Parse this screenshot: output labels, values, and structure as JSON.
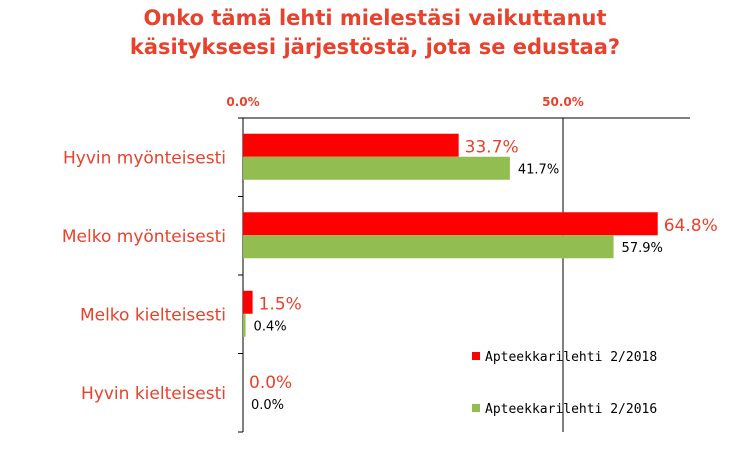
{
  "chart_data": {
    "type": "bar",
    "orientation": "horizontal",
    "title": [
      "Onko tämä lehti mielestäsi vaikuttanut",
      "käsitykseesi järjestöstä, jota se edustaa?"
    ],
    "categories": [
      "Hyvin myönteisesti",
      "Melko myönteisesti",
      "Melko kielteisesti",
      "Hyvin kielteisesti"
    ],
    "series": [
      {
        "name": "Apteekkarilehti 2/2018",
        "color": "#ff0000",
        "values": [
          33.7,
          64.8,
          1.5,
          0.0
        ],
        "labels": [
          "33.7%",
          "64.8%",
          "1.5%",
          "0.0%"
        ]
      },
      {
        "name": "Apteekkarilehti 2/2016",
        "color": "#92bd50",
        "values": [
          41.7,
          57.9,
          0.4,
          0.0
        ],
        "labels": [
          "41.7%",
          "57.9%",
          "0.4%",
          "0.0%"
        ]
      }
    ],
    "xlim": [
      0,
      70
    ],
    "xticks": [
      0,
      50
    ],
    "xtick_labels": [
      "0.0%",
      "50.0%"
    ],
    "xaxis_position": "top",
    "grid": true,
    "legend_position": "bottom-right",
    "accent_color": "#e8412c"
  }
}
